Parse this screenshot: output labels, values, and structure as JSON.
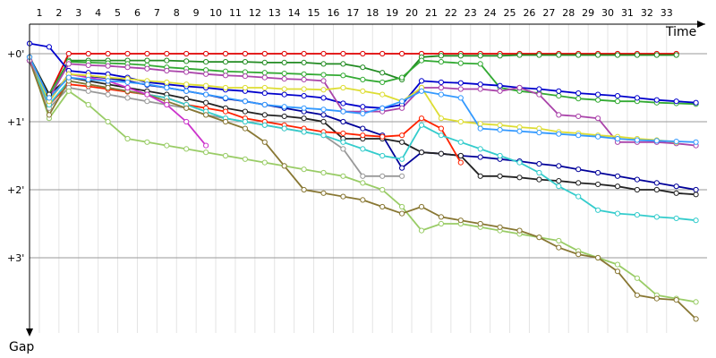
{
  "chart_data": {
    "type": "line",
    "x_label": "Time",
    "y_label": "Gap",
    "x": [
      0,
      1,
      2,
      3,
      4,
      5,
      6,
      7,
      8,
      9,
      10,
      11,
      12,
      13,
      14,
      15,
      16,
      17,
      18,
      19,
      20,
      21,
      22,
      23,
      24,
      25,
      26,
      27,
      28,
      29,
      30,
      31,
      32,
      33,
      34
    ],
    "xlim": [
      0,
      34
    ],
    "xticks": [
      1,
      2,
      3,
      4,
      5,
      6,
      7,
      8,
      9,
      10,
      11,
      12,
      13,
      14,
      15,
      16,
      17,
      18,
      19,
      20,
      21,
      22,
      23,
      24,
      25,
      26,
      27,
      28,
      29,
      30,
      31,
      32,
      33
    ],
    "ylim": [
      -0.46,
      4.1
    ],
    "yticks": [
      {
        "value": 0,
        "label": "+0'"
      },
      {
        "value": 1,
        "label": "+1'"
      },
      {
        "value": 2,
        "label": "+2'"
      },
      {
        "value": 3,
        "label": "+3'"
      }
    ],
    "grid": true,
    "series": [
      {
        "color": "#e00000",
        "values": [
          0.05,
          0.6,
          0,
          0,
          0,
          0,
          0,
          0,
          0,
          0,
          0,
          0,
          0,
          0,
          0,
          0,
          0,
          0,
          0,
          0,
          0,
          0,
          0,
          0,
          0,
          0,
          0,
          0,
          0,
          0,
          0,
          0,
          0,
          0,
          null
        ]
      },
      {
        "color": "#228b22",
        "values": [
          0.05,
          0.6,
          0.1,
          0.1,
          0.1,
          0.1,
          0.1,
          0.1,
          0.11,
          0.12,
          0.12,
          0.12,
          0.13,
          0.13,
          0.13,
          0.15,
          0.15,
          0.2,
          0.28,
          0.38,
          0.05,
          0.03,
          0.03,
          0.03,
          0.03,
          0.02,
          0.02,
          0.02,
          0.02,
          0.02,
          0.02,
          0.02,
          0.02,
          0.02,
          null
        ]
      },
      {
        "color": "#33aa33",
        "values": [
          0.05,
          0.6,
          0.12,
          0.13,
          0.14,
          0.15,
          0.17,
          0.2,
          0.22,
          0.24,
          0.26,
          0.27,
          0.28,
          0.29,
          0.3,
          0.31,
          0.32,
          0.38,
          0.42,
          0.35,
          0.1,
          0.12,
          0.14,
          0.15,
          0.5,
          0.55,
          0.58,
          0.62,
          0.66,
          0.68,
          0.7,
          0.7,
          0.72,
          0.73,
          0.74
        ]
      },
      {
        "color": "#0000cc",
        "values": [
          -0.15,
          -0.1,
          0.25,
          0.28,
          0.3,
          0.35,
          0.42,
          0.45,
          0.48,
          0.5,
          0.53,
          0.55,
          0.58,
          0.6,
          0.62,
          0.65,
          0.73,
          0.78,
          0.8,
          0.75,
          0.4,
          0.42,
          0.43,
          0.45,
          0.47,
          0.5,
          0.52,
          0.55,
          0.58,
          0.6,
          0.62,
          0.65,
          0.68,
          0.7,
          0.72
        ]
      },
      {
        "color": "#000099",
        "values": [
          0.1,
          0.7,
          0.3,
          0.33,
          0.36,
          0.4,
          0.46,
          0.5,
          0.55,
          0.6,
          0.66,
          0.7,
          0.75,
          0.8,
          0.85,
          0.9,
          1.0,
          1.1,
          1.2,
          1.68,
          1.45,
          1.47,
          1.5,
          1.52,
          1.55,
          1.58,
          1.62,
          1.65,
          1.7,
          1.75,
          1.8,
          1.85,
          1.9,
          1.95,
          2.0
        ]
      },
      {
        "color": "#222222",
        "values": [
          0.05,
          0.6,
          0.35,
          0.4,
          0.45,
          0.5,
          0.55,
          0.6,
          0.66,
          0.72,
          0.8,
          0.85,
          0.9,
          0.92,
          0.95,
          1.0,
          1.25,
          1.25,
          1.25,
          1.3,
          1.45,
          1.47,
          1.5,
          1.8,
          1.8,
          1.82,
          1.85,
          1.87,
          1.9,
          1.92,
          1.95,
          2.0,
          2.0,
          2.05,
          2.07
        ]
      },
      {
        "color": "#ff2200",
        "values": [
          0.1,
          0.75,
          0.45,
          0.48,
          0.52,
          0.56,
          0.6,
          0.65,
          0.75,
          0.8,
          0.85,
          0.95,
          1.0,
          1.05,
          1.1,
          1.15,
          1.17,
          1.2,
          1.22,
          1.2,
          0.95,
          1.1,
          1.6,
          null,
          null,
          null,
          null,
          null,
          null,
          null,
          null,
          null,
          null,
          null,
          null
        ]
      },
      {
        "color": "#999999",
        "values": [
          0.1,
          0.8,
          0.5,
          0.55,
          0.6,
          0.65,
          0.7,
          0.75,
          0.8,
          0.9,
          0.95,
          1.0,
          1.05,
          1.1,
          1.15,
          1.2,
          1.4,
          1.8,
          1.8,
          1.8,
          null,
          null,
          null,
          null,
          null,
          null,
          null,
          null,
          null,
          null,
          null,
          null,
          null,
          null,
          null
        ]
      },
      {
        "color": "#33cccc",
        "values": [
          0.1,
          0.75,
          0.4,
          0.45,
          0.5,
          0.55,
          0.6,
          0.65,
          0.75,
          0.85,
          0.95,
          1.0,
          1.05,
          1.1,
          1.15,
          1.2,
          1.3,
          1.4,
          1.5,
          1.55,
          1.05,
          1.2,
          1.3,
          1.4,
          1.5,
          1.6,
          1.75,
          1.95,
          2.1,
          2.3,
          2.35,
          2.37,
          2.4,
          2.42,
          2.45
        ]
      },
      {
        "color": "#99cc66",
        "values": [
          0.05,
          0.95,
          0.55,
          0.75,
          1.0,
          1.25,
          1.3,
          1.35,
          1.4,
          1.45,
          1.5,
          1.55,
          1.6,
          1.65,
          1.7,
          1.75,
          1.8,
          1.9,
          2.0,
          2.25,
          2.6,
          2.5,
          2.5,
          2.55,
          2.6,
          2.65,
          2.7,
          2.75,
          2.9,
          3.0,
          3.1,
          3.3,
          3.55,
          3.6,
          3.65
        ]
      },
      {
        "color": "#887733",
        "values": [
          0.1,
          0.9,
          0.4,
          0.45,
          0.5,
          0.55,
          0.6,
          0.7,
          0.8,
          0.9,
          1.0,
          1.1,
          1.3,
          1.65,
          2.0,
          2.05,
          2.1,
          2.15,
          2.25,
          2.35,
          2.25,
          2.4,
          2.45,
          2.5,
          2.55,
          2.6,
          2.7,
          2.85,
          2.95,
          3.0,
          3.2,
          3.55,
          3.6,
          3.62,
          3.9
        ]
      },
      {
        "color": "#cc33cc",
        "values": [
          0.05,
          0.7,
          0.3,
          0.35,
          0.4,
          0.5,
          0.6,
          0.75,
          1.0,
          1.35,
          null,
          null,
          null,
          null,
          null,
          null,
          null,
          null,
          null,
          null,
          null,
          null,
          null,
          null,
          null,
          null,
          null,
          null,
          null,
          null,
          null,
          null,
          null,
          null,
          null
        ]
      },
      {
        "color": "#aa44aa",
        "values": [
          0.1,
          0.65,
          0.15,
          0.17,
          0.18,
          0.2,
          0.22,
          0.25,
          0.27,
          0.3,
          0.32,
          0.33,
          0.35,
          0.37,
          0.38,
          0.4,
          0.85,
          0.85,
          0.85,
          0.8,
          0.5,
          0.5,
          0.52,
          0.52,
          0.55,
          0.5,
          0.6,
          0.9,
          0.92,
          0.95,
          1.3,
          1.3,
          1.3,
          1.32,
          1.35
        ]
      },
      {
        "color": "#dddd33",
        "values": [
          0.05,
          0.7,
          0.3,
          0.32,
          0.35,
          0.37,
          0.4,
          0.42,
          0.45,
          0.47,
          0.5,
          0.5,
          0.5,
          0.52,
          0.52,
          0.53,
          0.5,
          0.55,
          0.6,
          0.7,
          0.5,
          0.95,
          1.0,
          1.03,
          1.05,
          1.08,
          1.1,
          1.15,
          1.17,
          1.2,
          1.22,
          1.25,
          1.27,
          1.3,
          null
        ]
      },
      {
        "color": "#3399ff",
        "values": [
          0.05,
          0.65,
          0.35,
          0.38,
          0.4,
          0.42,
          0.45,
          0.5,
          0.55,
          0.6,
          0.65,
          0.7,
          0.75,
          0.78,
          0.8,
          0.82,
          0.85,
          0.88,
          0.8,
          0.7,
          0.55,
          0.6,
          0.65,
          1.1,
          1.12,
          1.14,
          1.16,
          1.18,
          1.2,
          1.22,
          1.25,
          1.27,
          1.28,
          1.29,
          1.3
        ]
      }
    ]
  }
}
